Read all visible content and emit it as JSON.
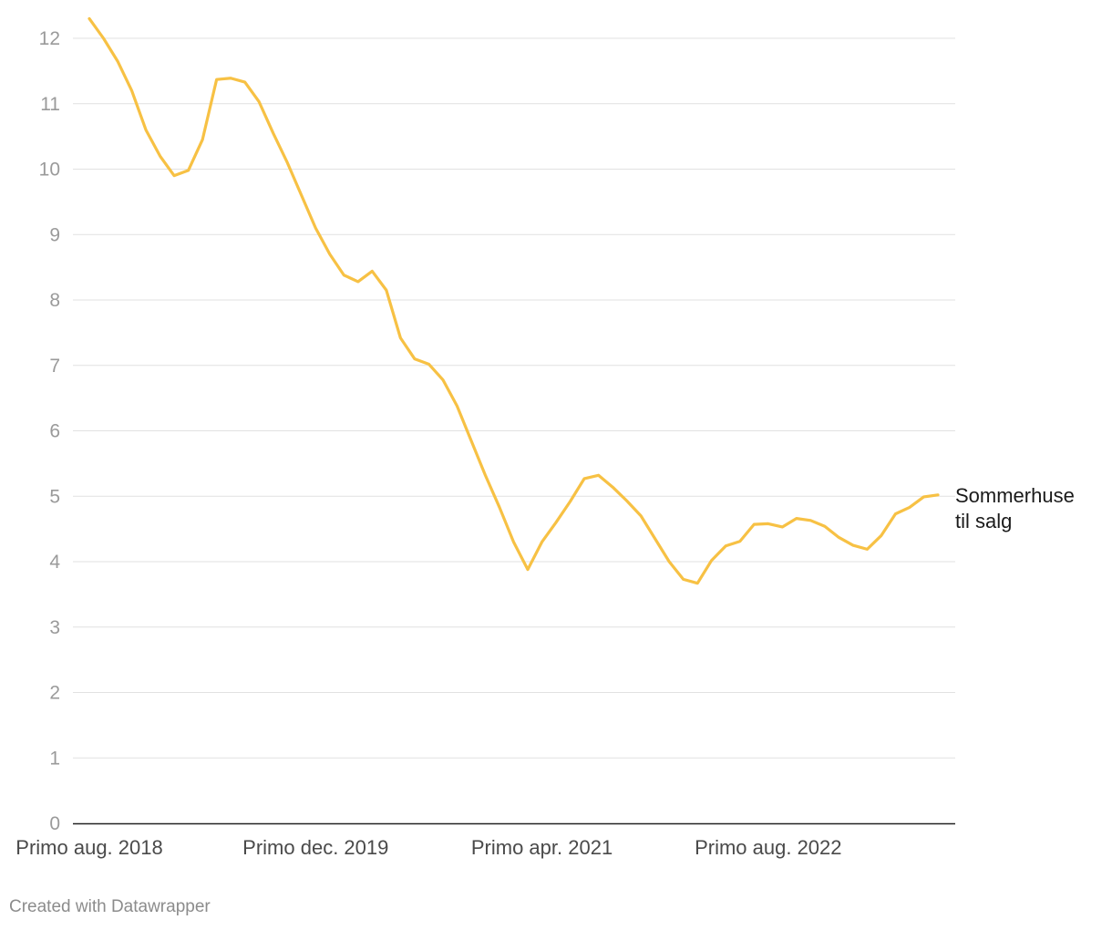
{
  "chart_data": {
    "type": "line",
    "title": "",
    "xlabel": "",
    "ylabel": "",
    "ylim": [
      0,
      12
    ],
    "yticks": [
      0,
      1,
      2,
      3,
      4,
      5,
      6,
      7,
      8,
      9,
      10,
      11,
      12
    ],
    "x_tick_labels": [
      {
        "label": "Primo aug. 2018",
        "index": 0
      },
      {
        "label": "Primo dec. 2019",
        "index": 16
      },
      {
        "label": "Primo apr. 2021",
        "index": 32
      },
      {
        "label": "Primo aug. 2022",
        "index": 48
      }
    ],
    "grid": true,
    "series": [
      {
        "name": "Sommerhuse til salg",
        "label_lines": [
          "Sommerhuse",
          "til salg"
        ],
        "color": "#f7c144",
        "values": [
          12.3,
          12.0,
          11.65,
          11.2,
          10.6,
          10.2,
          9.9,
          9.98,
          10.45,
          11.37,
          11.39,
          11.33,
          11.03,
          10.55,
          10.1,
          9.6,
          9.1,
          8.7,
          8.38,
          8.28,
          8.44,
          8.15,
          7.42,
          7.1,
          7.02,
          6.78,
          6.38,
          5.85,
          5.32,
          4.83,
          4.3,
          3.88,
          4.3,
          4.6,
          4.92,
          5.27,
          5.32,
          5.14,
          4.93,
          4.7,
          4.35,
          4.0,
          3.73,
          3.67,
          4.02,
          4.24,
          4.31,
          4.57,
          4.58,
          4.53,
          4.66,
          4.63,
          4.54,
          4.37,
          4.25,
          4.19,
          4.4,
          4.73,
          4.83,
          4.99,
          5.02
        ]
      }
    ]
  },
  "footer": {
    "credit": "Created with Datawrapper"
  }
}
